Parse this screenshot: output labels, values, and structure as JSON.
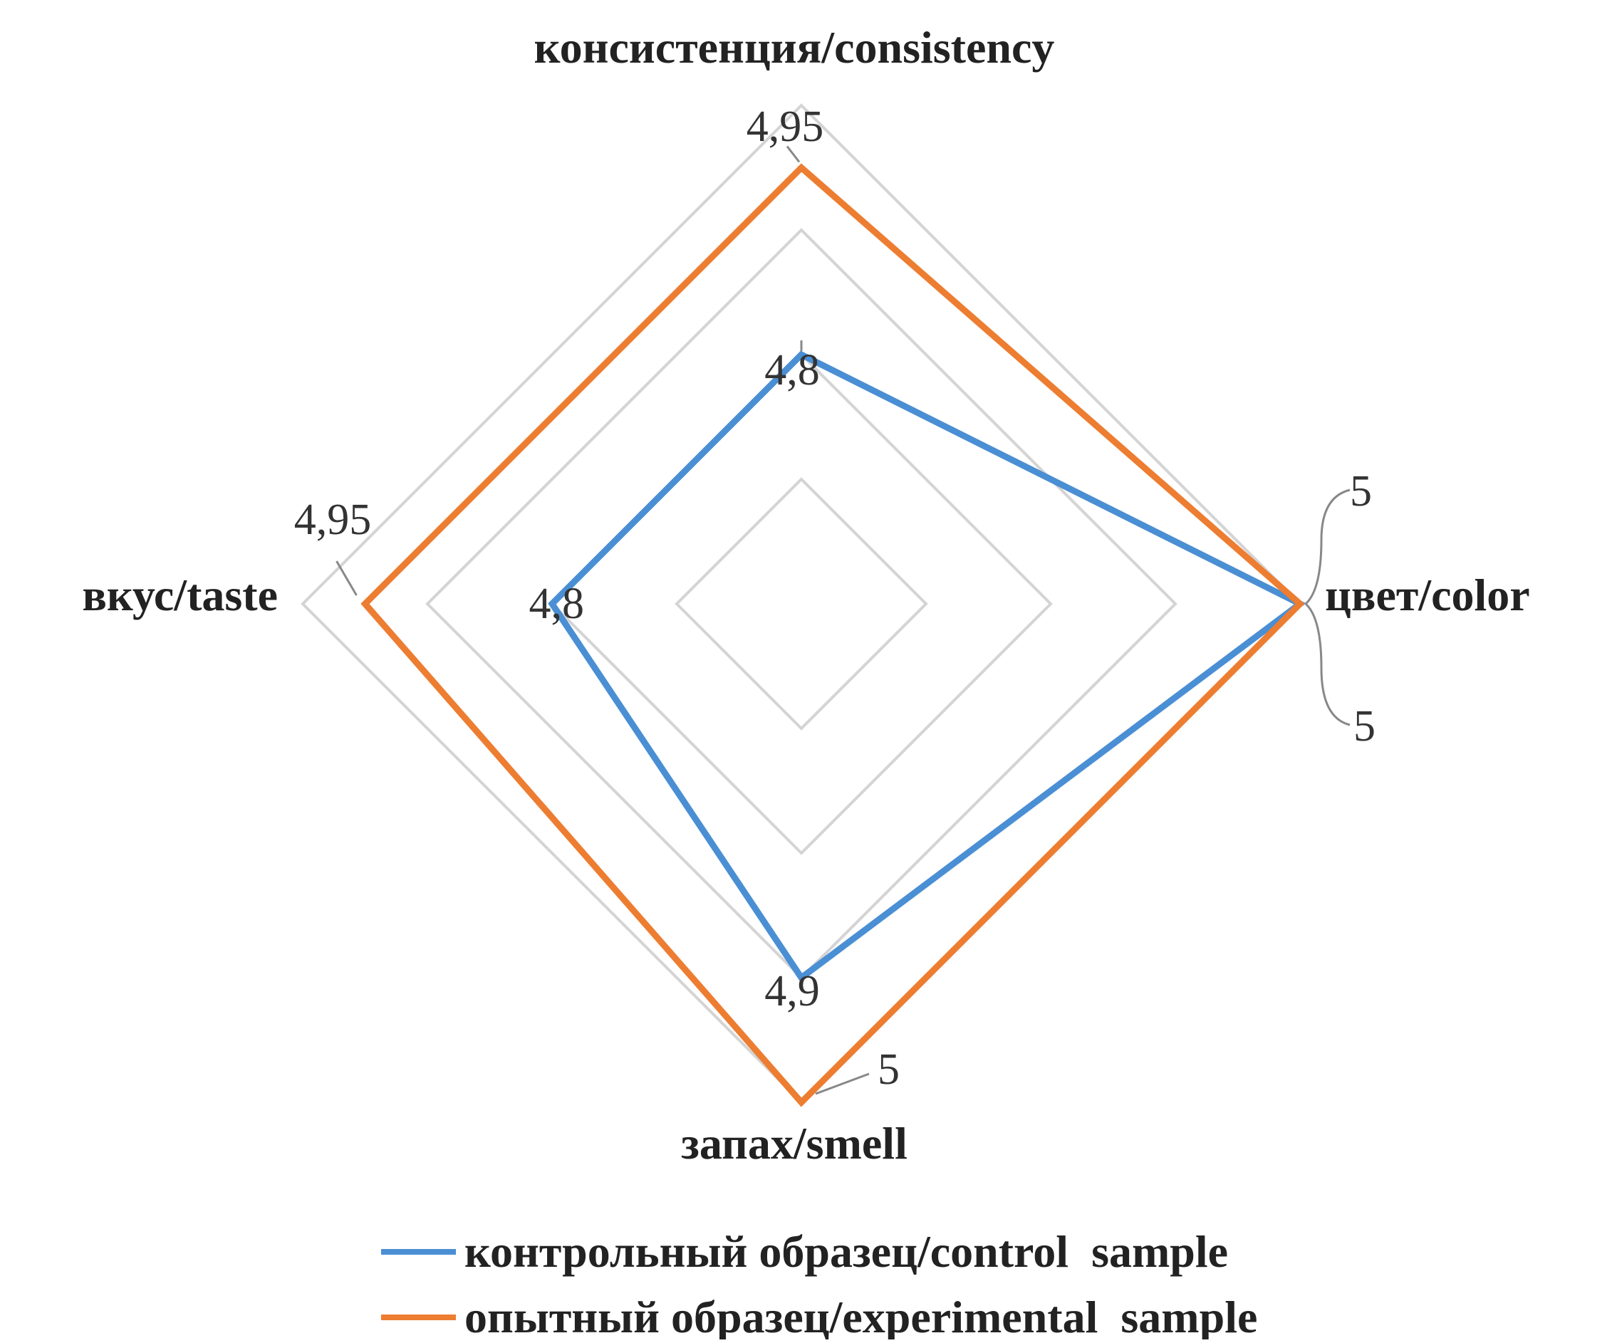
{
  "chart_data": {
    "type": "radar",
    "axes": [
      "консистенция/consistency",
      "цвет/color",
      "запах/smell",
      "вкус/taste"
    ],
    "rlim": [
      4.6,
      5.0
    ],
    "grid_levels": [
      4.7,
      4.8,
      4.9,
      5.0
    ],
    "grid": true,
    "legend_position": "bottom",
    "series": [
      {
        "name": "контрольный образец/control  sample",
        "color": "#4a8fd4",
        "values": [
          4.8,
          5,
          4.9,
          4.8
        ],
        "labels": [
          "4,8",
          "5",
          "4,9",
          "4,8"
        ]
      },
      {
        "name": "опытный образец/experimental  sample",
        "color": "#ed7d31",
        "values": [
          4.95,
          5,
          5,
          4.95
        ],
        "labels": [
          "4,95",
          "5",
          "5",
          "4,95"
        ]
      }
    ]
  }
}
